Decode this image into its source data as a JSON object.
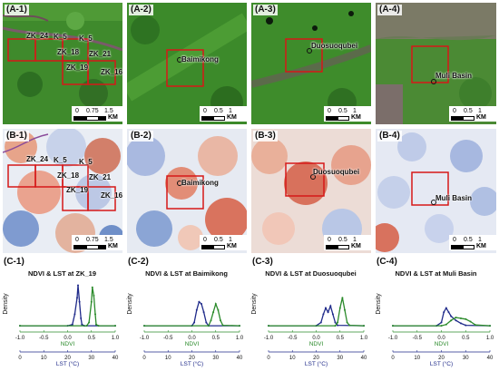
{
  "rows": {
    "A": [
      {
        "label": "(A-1)",
        "style": "green",
        "sites": [
          {
            "text": "ZK_24",
            "x": 25,
            "y": 37
          },
          {
            "text": "K_5",
            "x": 58,
            "y": 37
          },
          {
            "text": "K_5",
            "x": 86,
            "y": 40
          },
          {
            "text": "ZK_18",
            "x": 62,
            "y": 54
          },
          {
            "text": "ZK_21",
            "x": 98,
            "y": 56
          },
          {
            "text": "ZK_19",
            "x": 72,
            "y": 70
          },
          {
            "text": "ZK_16",
            "x": 110,
            "y": 76
          }
        ],
        "scale": [
          "0",
          "0.75",
          "1.5"
        ]
      },
      {
        "label": "(A-2)",
        "style": "green2",
        "sites": [
          {
            "text": "Baimikong",
            "x": 52,
            "y": 58
          }
        ],
        "scale": [
          "0",
          "0.5",
          "1"
        ]
      },
      {
        "label": "(A-3)",
        "style": "green3",
        "sites": [
          {
            "text": "Duosuoqubei",
            "x": 56,
            "y": 48
          }
        ],
        "scale": [
          "0",
          "0.5",
          "1"
        ]
      },
      {
        "label": "(A-4)",
        "style": "green4",
        "sites": [
          {
            "text": "Muli Basin",
            "x": 62,
            "y": 72
          }
        ],
        "scale": [
          "0",
          "0.5",
          "1"
        ]
      }
    ],
    "B": [
      {
        "label": "(B-1)",
        "style": "diff1",
        "sites": [
          {
            "text": "ZK_24",
            "x": 25,
            "y": 32
          },
          {
            "text": "K_5",
            "x": 58,
            "y": 32
          },
          {
            "text": "K_5",
            "x": 86,
            "y": 35
          },
          {
            "text": "ZK_18",
            "x": 62,
            "y": 50
          },
          {
            "text": "ZK_21",
            "x": 98,
            "y": 52
          },
          {
            "text": "ZK_19",
            "x": 72,
            "y": 66
          },
          {
            "text": "ZK_16",
            "x": 110,
            "y": 72
          }
        ],
        "scale": [
          "0",
          "0.75",
          "1.5"
        ]
      },
      {
        "label": "(B-2)",
        "style": "diff2",
        "sites": [
          {
            "text": "Baimikong",
            "x": 52,
            "y": 54
          }
        ],
        "scale": [
          "0",
          "0.5",
          "1"
        ]
      },
      {
        "label": "(B-3)",
        "style": "diff3",
        "sites": [
          {
            "text": "Duosuoqubei",
            "x": 56,
            "y": 44
          }
        ],
        "scale": [
          "0",
          "0.5",
          "1"
        ]
      },
      {
        "label": "(B-4)",
        "style": "diff4",
        "sites": [
          {
            "text": "Muli Basin",
            "x": 62,
            "y": 68
          }
        ],
        "scale": [
          "0",
          "0.5",
          "1"
        ]
      }
    ]
  },
  "km_label": "KM",
  "charts_header": [
    {
      "label": "(C-1)"
    },
    {
      "label": "(C-2)"
    },
    {
      "label": "(C-3)"
    },
    {
      "label": "(C-4)"
    }
  ],
  "chart_data": [
    {
      "type": "line",
      "title": "NDVI & LST at ZK_19",
      "ylabel": "Density",
      "xlabel": "NDVI",
      "x2label": "LST (°C)",
      "xlim": [
        -1.0,
        1.0
      ],
      "x_ticks": [
        "-1.0",
        "-0.5",
        "0.0",
        "0.5",
        "1.0"
      ],
      "x2lim": [
        0,
        40
      ],
      "x2_ticks": [
        "0",
        "10",
        "20",
        "30",
        "40"
      ],
      "series": [
        {
          "color": "#1f2a8a",
          "x": [
            -1.0,
            0.0,
            0.1,
            0.15,
            0.2,
            0.22,
            0.25,
            0.28,
            0.3,
            0.35,
            1.0
          ],
          "y": [
            0.02,
            0.02,
            0.05,
            0.3,
            0.7,
            1.0,
            0.6,
            0.2,
            0.05,
            0.02,
            0.02
          ]
        },
        {
          "color": "#2a8a2a",
          "x": [
            -1.0,
            0.4,
            0.45,
            0.5,
            0.52,
            0.55,
            0.58,
            0.6,
            0.65,
            1.0
          ],
          "y": [
            0.02,
            0.02,
            0.1,
            0.6,
            0.95,
            0.75,
            0.3,
            0.05,
            0.02,
            0.02
          ]
        }
      ]
    },
    {
      "type": "line",
      "title": "NDVI & LST at Baimikong",
      "ylabel": "Density",
      "xlabel": "NDVI",
      "x2label": "LST (°C)",
      "xlim": [
        -1.0,
        1.0
      ],
      "x_ticks": [
        "-1.0",
        "-0.5",
        "0.0",
        "0.5",
        "1.0"
      ],
      "x2lim": [
        0,
        40
      ],
      "x2_ticks": [
        "0",
        "10",
        "20",
        "30",
        "40"
      ],
      "series": [
        {
          "color": "#1f2a8a",
          "x": [
            -1.0,
            0.0,
            0.05,
            0.1,
            0.15,
            0.2,
            0.25,
            0.3,
            0.35,
            1.0
          ],
          "y": [
            0.02,
            0.02,
            0.1,
            0.4,
            0.6,
            0.55,
            0.35,
            0.1,
            0.02,
            0.02
          ]
        },
        {
          "color": "#2a8a2a",
          "x": [
            -1.0,
            0.35,
            0.4,
            0.45,
            0.5,
            0.55,
            0.6,
            0.65,
            1.0
          ],
          "y": [
            0.02,
            0.02,
            0.15,
            0.35,
            0.55,
            0.4,
            0.15,
            0.03,
            0.02
          ]
        }
      ]
    },
    {
      "type": "line",
      "title": "NDVI & LST at Duosuoqubei",
      "ylabel": "Density",
      "xlabel": "NDVI",
      "x2label": "LST (°C)",
      "xlim": [
        -1.0,
        1.0
      ],
      "x_ticks": [
        "-1.0",
        "-0.5",
        "0.0",
        "0.5",
        "1.0"
      ],
      "x2lim": [
        0,
        40
      ],
      "x2_ticks": [
        "0",
        "10",
        "20",
        "30",
        "40"
      ],
      "series": [
        {
          "color": "#1f2a8a",
          "x": [
            -1.0,
            0.0,
            0.1,
            0.15,
            0.2,
            0.25,
            0.3,
            0.35,
            0.4,
            0.45,
            1.0
          ],
          "y": [
            0.02,
            0.02,
            0.1,
            0.3,
            0.45,
            0.35,
            0.5,
            0.3,
            0.1,
            0.03,
            0.02
          ]
        },
        {
          "color": "#2a8a2a",
          "x": [
            -1.0,
            0.4,
            0.45,
            0.5,
            0.55,
            0.6,
            0.65,
            0.7,
            1.0
          ],
          "y": [
            0.02,
            0.02,
            0.1,
            0.45,
            0.7,
            0.4,
            0.1,
            0.03,
            0.02
          ]
        }
      ]
    },
    {
      "type": "line",
      "title": "NDVI & LST at Muli Basin",
      "ylabel": "Density",
      "xlabel": "NDVI",
      "x2label": "LST (°C)",
      "xlim": [
        -1.0,
        1.0
      ],
      "x_ticks": [
        "-1.0",
        "-0.5",
        "0.0",
        "0.5",
        "1.0"
      ],
      "x2lim": [
        0,
        40
      ],
      "x2_ticks": [
        "0",
        "10",
        "20",
        "30",
        "40"
      ],
      "series": [
        {
          "color": "#1f2a8a",
          "x": [
            -1.0,
            -0.1,
            0.0,
            0.05,
            0.1,
            0.15,
            0.2,
            0.3,
            0.4,
            0.5,
            1.0
          ],
          "y": [
            0.02,
            0.02,
            0.1,
            0.35,
            0.45,
            0.35,
            0.25,
            0.15,
            0.08,
            0.03,
            0.02
          ]
        },
        {
          "color": "#2a8a2a",
          "x": [
            -1.0,
            0.0,
            0.1,
            0.2,
            0.3,
            0.4,
            0.5,
            0.6,
            0.7,
            1.0
          ],
          "y": [
            0.02,
            0.02,
            0.05,
            0.15,
            0.22,
            0.2,
            0.18,
            0.12,
            0.04,
            0.02
          ]
        }
      ]
    }
  ]
}
